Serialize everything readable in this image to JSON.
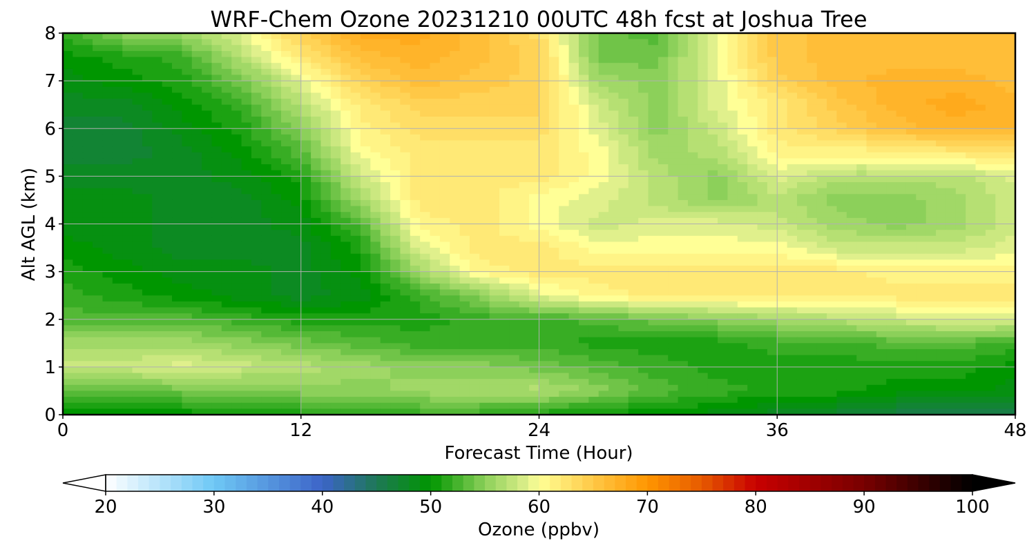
{
  "chart_data": {
    "type": "heatmap",
    "title": "WRF-Chem Ozone  20231210 00UTC 48h fcst at Joshua Tree",
    "xlabel": "Forecast Time (Hour)",
    "ylabel": "Alt AGL (km)",
    "xlim": [
      0,
      48
    ],
    "ylim": [
      0,
      8
    ],
    "x_ticks": [
      0,
      12,
      24,
      36,
      48
    ],
    "y_ticks": [
      0,
      1,
      2,
      3,
      4,
      5,
      6,
      7,
      8
    ],
    "grid": true,
    "x": [
      0,
      3,
      6,
      9,
      12,
      15,
      18,
      21,
      24,
      27,
      30,
      33,
      36,
      39,
      42,
      45,
      48
    ],
    "y": [
      0,
      0.5,
      1,
      1.5,
      2,
      2.5,
      3,
      3.5,
      4,
      4.5,
      5,
      5.5,
      6,
      6.5,
      7,
      7.5,
      8
    ],
    "z": [
      [
        49,
        50,
        50,
        50,
        51,
        51,
        52,
        52,
        51,
        50,
        50,
        49,
        48,
        47,
        46,
        45,
        45
      ],
      [
        53,
        53,
        54,
        54,
        55,
        55,
        56,
        56,
        57,
        55,
        53,
        52,
        51,
        51,
        50,
        50,
        49
      ],
      [
        58,
        58,
        59,
        58,
        57,
        56,
        55,
        55,
        54,
        53,
        52,
        51,
        51,
        51,
        51,
        51,
        50
      ],
      [
        56,
        56,
        56,
        55,
        54,
        53,
        52,
        52,
        52,
        51,
        51,
        51,
        52,
        52,
        53,
        53,
        52
      ],
      [
        53,
        53,
        53,
        52,
        51,
        51,
        51,
        52,
        52,
        53,
        54,
        55,
        56,
        57,
        58,
        59,
        59
      ],
      [
        52,
        51,
        50,
        49,
        48,
        49,
        52,
        55,
        59,
        61,
        62,
        62,
        62,
        62,
        62,
        62,
        62
      ],
      [
        51,
        50,
        49,
        49,
        48,
        50,
        56,
        61,
        62,
        62,
        62,
        62,
        62,
        62,
        61,
        61,
        61
      ],
      [
        50,
        49,
        48,
        48,
        48,
        51,
        59,
        62,
        62,
        60,
        60,
        60,
        60,
        58,
        58,
        58,
        59
      ],
      [
        49,
        49,
        48,
        48,
        49,
        53,
        61,
        62,
        60,
        58,
        59,
        59,
        58,
        56,
        55,
        56,
        58
      ],
      [
        49,
        49,
        48,
        48,
        50,
        56,
        62,
        62,
        60,
        59,
        57,
        55,
        57,
        55,
        55,
        56,
        58
      ],
      [
        48,
        48,
        48,
        49,
        51,
        58,
        62,
        62,
        62,
        60,
        57,
        55,
        59,
        57,
        57,
        57,
        59
      ],
      [
        47,
        47,
        48,
        50,
        53,
        60,
        62,
        62,
        62,
        60,
        56,
        57,
        61,
        61,
        61,
        62,
        63
      ],
      [
        47,
        47,
        49,
        51,
        55,
        61,
        63,
        63,
        63,
        59,
        55,
        58,
        62,
        64,
        66,
        67,
        67
      ],
      [
        48,
        48,
        50,
        52,
        57,
        62,
        64,
        64,
        64,
        58,
        55,
        59,
        62,
        65,
        67,
        68,
        67
      ],
      [
        49,
        50,
        51,
        54,
        59,
        64,
        66,
        65,
        64,
        56,
        55,
        59,
        64,
        66,
        67,
        67,
        66
      ],
      [
        50,
        51,
        52,
        57,
        62,
        66,
        67,
        66,
        64,
        54,
        54,
        60,
        65,
        66,
        66,
        66,
        66
      ],
      [
        52,
        55,
        56,
        59,
        64,
        68,
        68,
        66,
        63,
        54,
        53,
        60,
        65,
        66,
        66,
        66,
        66
      ]
    ],
    "colorbar": {
      "label": "Ozone  (ppbv)",
      "ticks": [
        20,
        30,
        40,
        50,
        60,
        70,
        80,
        90,
        100
      ],
      "min": 20,
      "max": 100,
      "extend": "both"
    },
    "colormap_stops": [
      {
        "v": 20,
        "color": "#ffffff"
      },
      {
        "v": 30,
        "color": "#6ec8f5"
      },
      {
        "v": 40,
        "color": "#3c64c8"
      },
      {
        "v": 45,
        "color": "#1e7856"
      },
      {
        "v": 50,
        "color": "#009600"
      },
      {
        "v": 55,
        "color": "#8cd05a"
      },
      {
        "v": 59,
        "color": "#e0f08c"
      },
      {
        "v": 60,
        "color": "#ffff96"
      },
      {
        "v": 65,
        "color": "#ffc846"
      },
      {
        "v": 70,
        "color": "#ff9600"
      },
      {
        "v": 75,
        "color": "#e65a00"
      },
      {
        "v": 80,
        "color": "#c80000"
      },
      {
        "v": 90,
        "color": "#780000"
      },
      {
        "v": 100,
        "color": "#000000"
      }
    ],
    "colors": {
      "grid": "#b0b0b0",
      "frame": "#000000"
    }
  }
}
